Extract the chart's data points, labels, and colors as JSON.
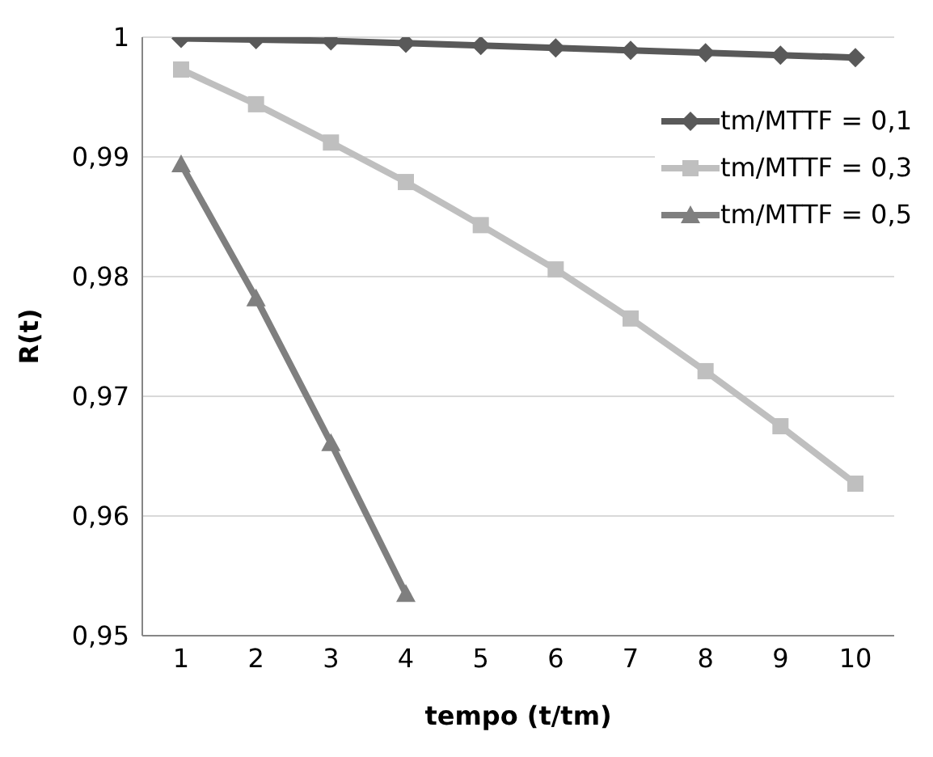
{
  "chart_data": {
    "type": "line",
    "xlabel": "tempo (t/tm)",
    "ylabel": "R(t)",
    "categories": [
      "1",
      "2",
      "3",
      "4",
      "5",
      "6",
      "7",
      "8",
      "9",
      "10"
    ],
    "series": [
      {
        "name": "tm/MTTF = 0,1",
        "color": "#595959",
        "marker": "diamond",
        "values": [
          0.9999,
          0.9998,
          0.9997,
          0.9995,
          0.9993,
          0.9991,
          0.9989,
          0.9987,
          0.9985,
          0.9983
        ]
      },
      {
        "name": "tm/MTTF = 0,3",
        "color": "#bfbfbf",
        "marker": "square",
        "values": [
          0.9973,
          0.9944,
          0.9912,
          0.9879,
          0.9843,
          0.9806,
          0.9765,
          0.9721,
          0.9675,
          0.9627
        ]
      },
      {
        "name": "tm/MTTF = 0,5",
        "color": "#7f7f7f",
        "marker": "triangle",
        "values": [
          0.9894,
          0.9782,
          0.9661,
          0.9535,
          null,
          null,
          null,
          null,
          null,
          null
        ]
      }
    ],
    "ylim": [
      0.95,
      1
    ],
    "yticks": [
      {
        "value": 0.95,
        "label": "0,95"
      },
      {
        "value": 0.96,
        "label": "0,96"
      },
      {
        "value": 0.97,
        "label": "0,97"
      },
      {
        "value": 0.98,
        "label": "0,98"
      },
      {
        "value": 0.99,
        "label": "0,99"
      },
      1
    ],
    "grid": "y",
    "legend": "right",
    "line_style": "solid"
  }
}
